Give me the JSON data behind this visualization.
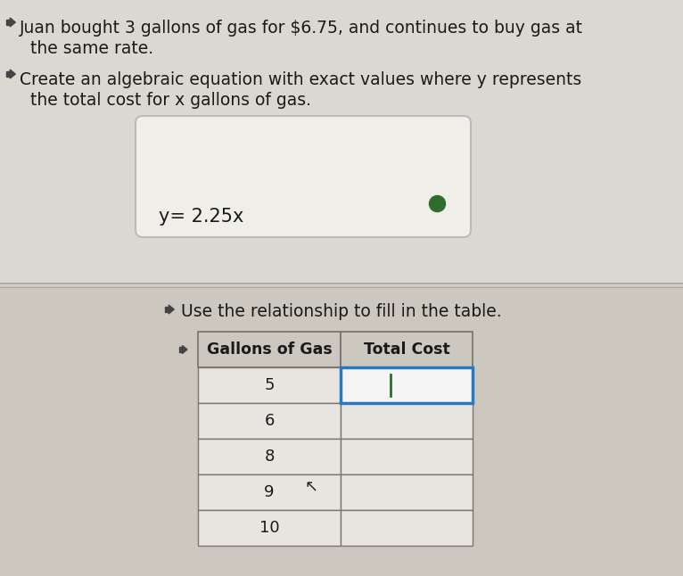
{
  "bg_top": "#dbd8d2",
  "bg_bottom": "#ccc8c0",
  "text_color": "#1a1a1a",
  "speaker_color": "#444444",
  "line1": "Juan bought 3 gallons of gas for $6.75, and continues to buy gas at",
  "line2": "  the same rate.",
  "line3": "Create an algebraic equation with exact values where y represents",
  "line4": "  the total cost for x gallons of gas.",
  "equation": "y= 2.25x",
  "dot_color": "#2d6e2d",
  "divider_color": "#aaaaaa",
  "table_instruction": "Use the relationship to fill in the table.",
  "table_header_col1": "Gallons of Gas",
  "table_header_col2": "Total Cost",
  "table_rows": [
    5,
    6,
    8,
    9,
    10
  ],
  "table_bg_light": "#e8e5e0",
  "table_bg_header": "#ccc8bf",
  "table_active_border": "#2979c0",
  "table_active_bg": "#f5f5f5",
  "eq_box_bg": "#f0eee8",
  "eq_box_border": "#bbbbbb",
  "cursor_color": "#2d6e2d",
  "figsize": [
    7.66,
    6.46
  ],
  "dpi": 100
}
